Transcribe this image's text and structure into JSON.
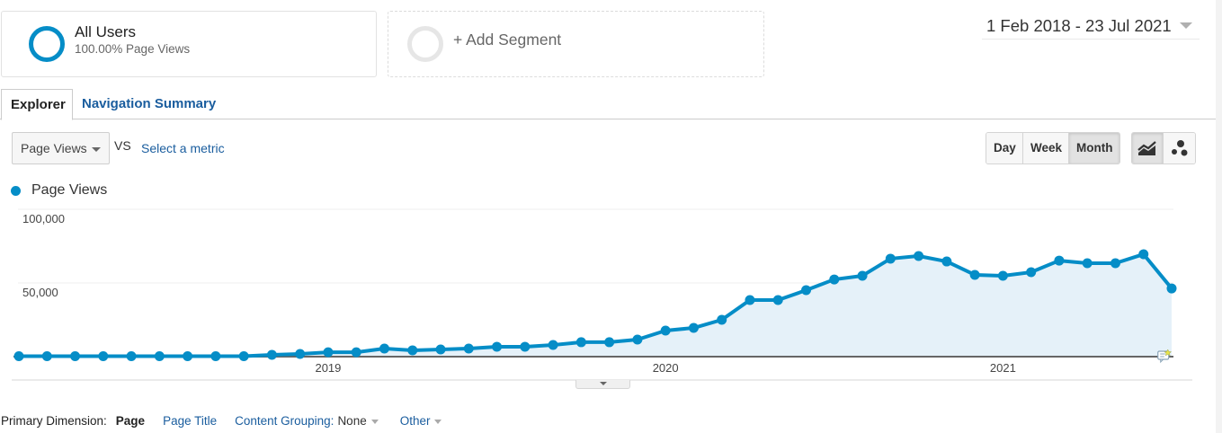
{
  "segments": {
    "all_users": {
      "title": "All Users",
      "subtitle": "100.00% Page Views",
      "icon": "segment-ring-icon",
      "ring_color": "#058dc7"
    },
    "add_segment": {
      "label": "+ Add Segment",
      "icon": "empty-ring-icon"
    }
  },
  "date_range": {
    "label": "1 Feb 2018 - 23 Jul 2021",
    "icon": "caret-down-icon"
  },
  "tabs": [
    {
      "label": "Explorer",
      "active": true
    },
    {
      "label": "Navigation Summary",
      "active": false
    }
  ],
  "metric_controls": {
    "primary_metric": "Page Views",
    "vs_label": "VS",
    "secondary_metric_link": "Select a metric"
  },
  "period_buttons": [
    {
      "label": "Day",
      "active": false
    },
    {
      "label": "Week",
      "active": false
    },
    {
      "label": "Month",
      "active": true
    }
  ],
  "chart_type_buttons": [
    {
      "name": "line-chart-icon",
      "active": true
    },
    {
      "name": "motion-chart-icon",
      "active": false
    }
  ],
  "legend": {
    "label": "Page Views",
    "color": "#058dc7"
  },
  "colors": {
    "accent": "#058dc7",
    "area_fill": "#e5f1f9",
    "link": "#1a5d9e"
  },
  "chart_data": {
    "type": "area",
    "title": "",
    "xlabel": "",
    "ylabel": "Page Views",
    "ylim": [
      0,
      100000
    ],
    "y_ticks": [
      "100,000",
      "50,000"
    ],
    "x_tick_labels": [
      {
        "label": "2019",
        "index": 11
      },
      {
        "label": "2020",
        "index": 23
      },
      {
        "label": "2021",
        "index": 35
      }
    ],
    "grid": true,
    "legend_position": "top-left",
    "categories": [
      "Feb 2018",
      "Mar 2018",
      "Apr 2018",
      "May 2018",
      "Jun 2018",
      "Jul 2018",
      "Aug 2018",
      "Sep 2018",
      "Oct 2018",
      "Nov 2018",
      "Dec 2018",
      "Jan 2019",
      "Feb 2019",
      "Mar 2019",
      "Apr 2019",
      "May 2019",
      "Jun 2019",
      "Jul 2019",
      "Aug 2019",
      "Sep 2019",
      "Oct 2019",
      "Nov 2019",
      "Dec 2019",
      "Jan 2020",
      "Feb 2020",
      "Mar 2020",
      "Apr 2020",
      "May 2020",
      "Jun 2020",
      "Jul 2020",
      "Aug 2020",
      "Sep 2020",
      "Oct 2020",
      "Nov 2020",
      "Dec 2020",
      "Jan 2021",
      "Feb 2021",
      "Mar 2021",
      "Apr 2021",
      "May 2021",
      "Jun 2021",
      "Jul 2021"
    ],
    "series": [
      {
        "name": "Page Views",
        "color": "#058dc7",
        "values": [
          300,
          300,
          300,
          300,
          300,
          300,
          300,
          300,
          300,
          1200,
          1800,
          3000,
          3000,
          5500,
          4300,
          4900,
          5500,
          6700,
          6700,
          7900,
          9800,
          9800,
          11600,
          17700,
          19500,
          25000,
          38400,
          38400,
          45100,
          52400,
          54900,
          66500,
          68300,
          64600,
          55500,
          54900,
          57300,
          65200,
          63400,
          63400,
          69500,
          46300
        ]
      }
    ],
    "annotation_icon": {
      "name": "annotation-icon",
      "index": 40
    }
  },
  "primary_dimension": {
    "label": "Primary Dimension:",
    "active": "Page",
    "links": [
      {
        "label": "Page Title"
      },
      {
        "label": "Content Grouping:",
        "value": "None"
      },
      {
        "label": "Other"
      }
    ]
  }
}
